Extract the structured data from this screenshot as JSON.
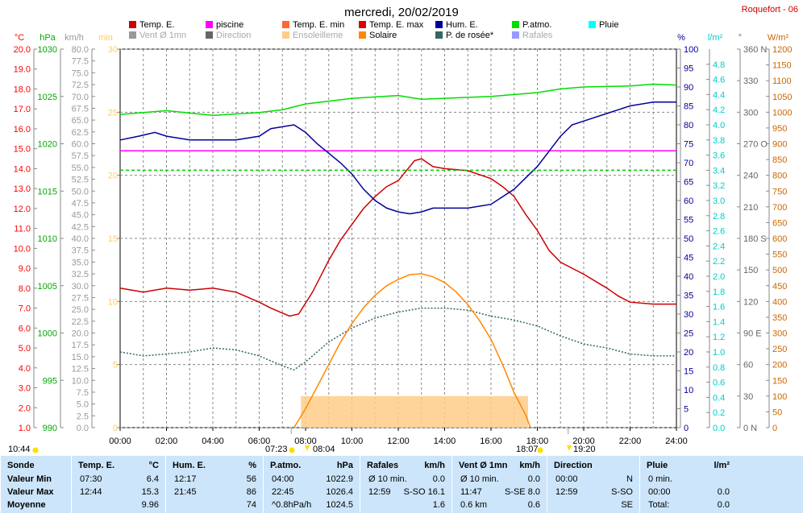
{
  "header": {
    "title": "mercredi, 20/02/2019",
    "station": "Roquefort - 06"
  },
  "legend": [
    {
      "label": "Temp. E.",
      "color": "#cc0000",
      "active": true
    },
    {
      "label": "piscine",
      "color": "#ff00ff",
      "active": true
    },
    {
      "label": "Temp. E. min",
      "color": "#ff6633",
      "active": true
    },
    {
      "label": "Temp. E. max",
      "color": "#dd0000",
      "active": true
    },
    {
      "label": "Hum. E.",
      "color": "#000099",
      "active": true
    },
    {
      "label": "P.atmo.",
      "color": "#00dd00",
      "active": true
    },
    {
      "label": "Pluie",
      "color": "#00ffff",
      "active": true
    },
    {
      "label": "Vent Ø 1mn",
      "color": "#999999",
      "active": false
    },
    {
      "label": "Direction",
      "color": "#666666",
      "active": false
    },
    {
      "label": "Ensoleilleme",
      "color": "#ffcc88",
      "active": false
    },
    {
      "label": "Solaire",
      "color": "#ff8800",
      "active": true
    },
    {
      "label": "P. de rosée*",
      "color": "#336666",
      "active": true
    },
    {
      "label": "Rafales",
      "color": "#9999ff",
      "active": false
    }
  ],
  "axes": {
    "temp": {
      "unit": "°C",
      "ticks": [
        "1.0",
        "2.0",
        "3.0",
        "4.0",
        "5.0",
        "6.0",
        "7.0",
        "8.0",
        "9.0",
        "10.0",
        "11.0",
        "12.0",
        "13.0",
        "14.0",
        "15.0",
        "16.0",
        "17.0",
        "18.0",
        "19.0",
        "20.0"
      ],
      "color": "#ff0000"
    },
    "press": {
      "unit": "hPa",
      "ticks": [
        "990",
        "995",
        "1000",
        "1005",
        "1010",
        "1015",
        "1020",
        "1025",
        "1030"
      ],
      "color": "#00aa00"
    },
    "wind": {
      "unit": "km/h",
      "ticks": [
        "0.0",
        "2.5",
        "5.0",
        "7.5",
        "10.0",
        "12.5",
        "15.0",
        "17.5",
        "20.0",
        "22.5",
        "25.0",
        "27.5",
        "30.0",
        "32.5",
        "35.0",
        "37.5",
        "40.0",
        "42.5",
        "45.0",
        "47.5",
        "50.0",
        "52.5",
        "55.0",
        "57.5",
        "60.0",
        "62.5",
        "65.0",
        "67.5",
        "70.0",
        "72.5",
        "75.0",
        "77.5",
        "80.0"
      ],
      "color": "#999999"
    },
    "sun": {
      "unit": "min",
      "ticks": [
        "0",
        "5",
        "10",
        "15",
        "20",
        "25",
        "30"
      ],
      "color": "#ffcc66"
    },
    "hum": {
      "unit": "%",
      "ticks": [
        "0",
        "5",
        "10",
        "15",
        "20",
        "25",
        "30",
        "35",
        "40",
        "45",
        "50",
        "55",
        "60",
        "65",
        "70",
        "75",
        "80",
        "85",
        "90",
        "95",
        "100"
      ],
      "color": "#000099"
    },
    "rain": {
      "unit": "l/m²",
      "ticks": [
        "0.0",
        "0.2",
        "0.4",
        "0.6",
        "0.8",
        "1.0",
        "1.2",
        "1.4",
        "1.6",
        "1.8",
        "2.0",
        "2.2",
        "2.4",
        "2.6",
        "2.8",
        "3.0",
        "3.2",
        "3.4",
        "3.6",
        "3.8",
        "4.0",
        "4.2",
        "4.4",
        "4.6",
        "4.8"
      ],
      "color": "#00cccc"
    },
    "dir": {
      "unit": "°",
      "ticks": [
        "0 N",
        "30",
        "60",
        "90 E",
        "120",
        "150",
        "180 S",
        "210",
        "240",
        "270 O",
        "300",
        "330",
        "360 N"
      ],
      "color": "#666666"
    },
    "solar": {
      "unit": "W/m²",
      "ticks": [
        "0",
        "50",
        "100",
        "150",
        "200",
        "250",
        "300",
        "350",
        "400",
        "450",
        "500",
        "550",
        "600",
        "650",
        "700",
        "750",
        "800",
        "850",
        "900",
        "950",
        "1000",
        "1050",
        "1100",
        "1150",
        "1200"
      ],
      "color": "#cc6600"
    },
    "x_ticks": [
      "00:00",
      "02:00",
      "04:00",
      "06:00",
      "08:00",
      "10:00",
      "12:00",
      "14:00",
      "16:00",
      "18:00",
      "20:00",
      "22:00",
      "24:00"
    ]
  },
  "sun_marks": {
    "moon_left": "10:44",
    "sunrise": "07:23",
    "sunrise2": "08:04",
    "sunset": "18:07",
    "moon_right": "19:20"
  },
  "chart_data": {
    "type": "line",
    "x_unit": "hours",
    "xlim": [
      0,
      24
    ],
    "series": [
      {
        "name": "Temp. E.",
        "axis": "temp",
        "color": "#cc0000",
        "points": [
          [
            0,
            8.0
          ],
          [
            0.5,
            7.9
          ],
          [
            1,
            7.8
          ],
          [
            2,
            8.0
          ],
          [
            3,
            7.9
          ],
          [
            4,
            8.0
          ],
          [
            5,
            7.8
          ],
          [
            6,
            7.3
          ],
          [
            6.5,
            7.0
          ],
          [
            7.3,
            6.6
          ],
          [
            7.7,
            6.7
          ],
          [
            8.3,
            7.8
          ],
          [
            9,
            9.4
          ],
          [
            9.5,
            10.4
          ],
          [
            10,
            11.2
          ],
          [
            10.5,
            12.0
          ],
          [
            11,
            12.6
          ],
          [
            11.5,
            13.1
          ],
          [
            12,
            13.4
          ],
          [
            12.7,
            14.4
          ],
          [
            13,
            14.5
          ],
          [
            13.5,
            14.1
          ],
          [
            14,
            14.0
          ],
          [
            15,
            13.9
          ],
          [
            16,
            13.5
          ],
          [
            16.5,
            13.1
          ],
          [
            17,
            12.6
          ],
          [
            17.5,
            11.7
          ],
          [
            18,
            10.9
          ],
          [
            18.5,
            9.9
          ],
          [
            19,
            9.3
          ],
          [
            20,
            8.7
          ],
          [
            21,
            8.0
          ],
          [
            21.5,
            7.6
          ],
          [
            22,
            7.3
          ],
          [
            23,
            7.2
          ],
          [
            24,
            7.2
          ]
        ]
      },
      {
        "name": "piscine",
        "axis": "temp",
        "color": "#ff00ff",
        "points": [
          [
            0,
            14.9
          ],
          [
            24,
            14.9
          ]
        ]
      },
      {
        "name": "P.atmo.",
        "axis": "press",
        "color": "#00dd00",
        "points": [
          [
            0,
            1023.1
          ],
          [
            2,
            1023.5
          ],
          [
            4,
            1023.0
          ],
          [
            6,
            1023.3
          ],
          [
            7,
            1023.6
          ],
          [
            8,
            1024.2
          ],
          [
            9,
            1024.5
          ],
          [
            10,
            1024.8
          ],
          [
            12,
            1025.1
          ],
          [
            13,
            1024.7
          ],
          [
            15,
            1024.9
          ],
          [
            16,
            1025.0
          ],
          [
            18,
            1025.4
          ],
          [
            19,
            1025.8
          ],
          [
            20,
            1026.0
          ],
          [
            22,
            1026.1
          ],
          [
            23,
            1026.3
          ],
          [
            24,
            1026.2
          ]
        ]
      },
      {
        "name": "Hum. E.",
        "axis": "hum",
        "color": "#000099",
        "points": [
          [
            0,
            76
          ],
          [
            0.8,
            77
          ],
          [
            1.5,
            78
          ],
          [
            2,
            77
          ],
          [
            3,
            76
          ],
          [
            4,
            76
          ],
          [
            5,
            76
          ],
          [
            6,
            77
          ],
          [
            6.5,
            79
          ],
          [
            7.5,
            80
          ],
          [
            8,
            78
          ],
          [
            8.5,
            75
          ],
          [
            9.5,
            70
          ],
          [
            10,
            67
          ],
          [
            10.5,
            63
          ],
          [
            11,
            60
          ],
          [
            11.5,
            58
          ],
          [
            12,
            57
          ],
          [
            12.5,
            56.5
          ],
          [
            13,
            57
          ],
          [
            13.5,
            58
          ],
          [
            14,
            58
          ],
          [
            15,
            58
          ],
          [
            16,
            59
          ],
          [
            16.5,
            61
          ],
          [
            17,
            63
          ],
          [
            17.5,
            66
          ],
          [
            18,
            69
          ],
          [
            18.5,
            73
          ],
          [
            19,
            77
          ],
          [
            19.5,
            80
          ],
          [
            20,
            81
          ],
          [
            21,
            83
          ],
          [
            22,
            85
          ],
          [
            23,
            86
          ],
          [
            24,
            86
          ]
        ]
      },
      {
        "name": "P. de rosée*",
        "axis": "temp",
        "color": "#336666",
        "points": [
          [
            0,
            4.8
          ],
          [
            1,
            4.6
          ],
          [
            2,
            4.7
          ],
          [
            3,
            4.8
          ],
          [
            4,
            5.0
          ],
          [
            5,
            4.9
          ],
          [
            6,
            4.6
          ],
          [
            7,
            4.1
          ],
          [
            7.5,
            3.9
          ],
          [
            8,
            4.3
          ],
          [
            9,
            5.3
          ],
          [
            10,
            6.0
          ],
          [
            11,
            6.5
          ],
          [
            12,
            6.8
          ],
          [
            13,
            7.0
          ],
          [
            14,
            7.0
          ],
          [
            15,
            6.9
          ],
          [
            16,
            6.6
          ],
          [
            17,
            6.4
          ],
          [
            18,
            6.1
          ],
          [
            19,
            5.6
          ],
          [
            20,
            5.2
          ],
          [
            21,
            5.0
          ],
          [
            22,
            4.7
          ],
          [
            23,
            4.6
          ],
          [
            24,
            4.6
          ]
        ]
      },
      {
        "name": "Solaire",
        "axis": "solar",
        "color": "#ff8800",
        "points": [
          [
            7.5,
            0
          ],
          [
            8,
            60
          ],
          [
            8.5,
            130
          ],
          [
            9,
            200
          ],
          [
            9.5,
            270
          ],
          [
            10,
            330
          ],
          [
            10.5,
            380
          ],
          [
            11,
            420
          ],
          [
            11.5,
            450
          ],
          [
            12,
            470
          ],
          [
            12.5,
            485
          ],
          [
            13,
            488
          ],
          [
            13.5,
            478
          ],
          [
            14,
            460
          ],
          [
            14.5,
            430
          ],
          [
            15,
            390
          ],
          [
            15.5,
            340
          ],
          [
            16,
            280
          ],
          [
            16.5,
            200
          ],
          [
            17,
            110
          ],
          [
            17.5,
            40
          ],
          [
            17.7,
            0
          ]
        ]
      },
      {
        "name": "P.atmo. seuil",
        "axis": "press",
        "color": "#00cc00",
        "points": [
          [
            0,
            1017.2
          ],
          [
            24,
            1017.2
          ]
        ]
      }
    ],
    "sunshine_band": {
      "start": 7.8,
      "end": 17.6,
      "value": 2.5,
      "axis": "sun",
      "color": "#ffcc88"
    }
  },
  "summary": {
    "columns": [
      {
        "title": "Sonde",
        "unit": "",
        "rows": [
          [
            "Valeur Min"
          ],
          [
            "Valeur Max"
          ],
          [
            "Moyenne"
          ]
        ]
      },
      {
        "title": "Temp. E.",
        "unit": "°C",
        "rows": [
          [
            "07:30",
            "6.4"
          ],
          [
            "12:44",
            "15.3"
          ],
          [
            "",
            "9.96"
          ]
        ]
      },
      {
        "title": "Hum. E.",
        "unit": "%",
        "rows": [
          [
            "12:17",
            "56"
          ],
          [
            "21:45",
            "86"
          ],
          [
            "",
            "74"
          ]
        ]
      },
      {
        "title": "P.atmo.",
        "unit": "hPa",
        "rows": [
          [
            "04:00",
            "1022.9"
          ],
          [
            "22:45",
            "1026.4"
          ],
          [
            "^0.8hPa/h",
            "1024.5"
          ]
        ]
      },
      {
        "title": "Rafales",
        "unit": "km/h",
        "rows": [
          [
            "Ø 10 min.",
            "0.0"
          ],
          [
            "12:59",
            "S-SO 16.1"
          ],
          [
            "",
            "1.6"
          ]
        ]
      },
      {
        "title": "Vent Ø 1mn",
        "unit": "km/h",
        "rows": [
          [
            "Ø 10 min.",
            "0.0"
          ],
          [
            "11:47",
            "S-SE 8.0"
          ],
          [
            "0.6 km",
            "0.6"
          ]
        ]
      },
      {
        "title": "Direction",
        "unit": "",
        "rows": [
          [
            "00:00",
            "N"
          ],
          [
            "12:59",
            "S-SO"
          ],
          [
            "",
            "SE"
          ]
        ]
      },
      {
        "title": "Pluie",
        "unit": "l/m²",
        "rows": [
          [
            "0 min.",
            ""
          ],
          [
            "00:00",
            "0.0"
          ],
          [
            "Total:",
            "0.0"
          ]
        ]
      }
    ]
  }
}
